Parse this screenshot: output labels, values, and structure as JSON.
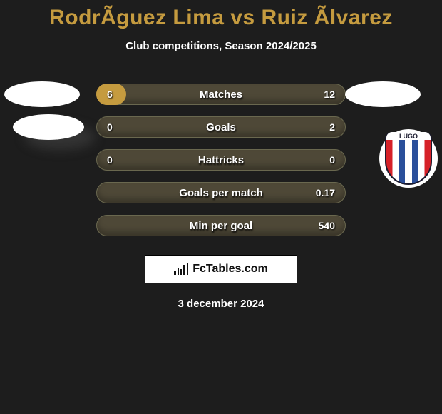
{
  "title": "RodrÃ­guez Lima vs Ruiz Ãlvarez",
  "subtitle": "Club competitions, Season 2024/2025",
  "date": "3 december 2024",
  "branding": {
    "text": "FcTables.com"
  },
  "badge": {
    "label": "LUGO"
  },
  "colors": {
    "background": "#1d1d1d",
    "accent": "#c59b3f",
    "pill_bg": "#4e4837",
    "pill_border": "#6a684f",
    "text": "#ffffff"
  },
  "chart": {
    "type": "horizontal-bar-comparison",
    "pill_width": 350,
    "pill_height": 30,
    "row_gap": 46
  },
  "rows": [
    {
      "label": "Matches",
      "left": "6",
      "right": "12",
      "left_fill_pct": 12,
      "right_fill_pct": 0
    },
    {
      "label": "Goals",
      "left": "0",
      "right": "2",
      "left_fill_pct": 0,
      "right_fill_pct": 0
    },
    {
      "label": "Hattricks",
      "left": "0",
      "right": "0",
      "left_fill_pct": 0,
      "right_fill_pct": 0
    },
    {
      "label": "Goals per match",
      "left": "",
      "right": "0.17",
      "left_fill_pct": 0,
      "right_fill_pct": 0
    },
    {
      "label": "Min per goal",
      "left": "",
      "right": "540",
      "left_fill_pct": 0,
      "right_fill_pct": 0
    }
  ],
  "decor": {
    "ovals": [
      {
        "side": "left",
        "row_index": 0,
        "shadow": false
      },
      {
        "side": "left",
        "row_index": 1,
        "shadow": true
      },
      {
        "side": "right",
        "row_index": 0,
        "shadow": false
      }
    ],
    "club_badge_row_index": 2
  }
}
